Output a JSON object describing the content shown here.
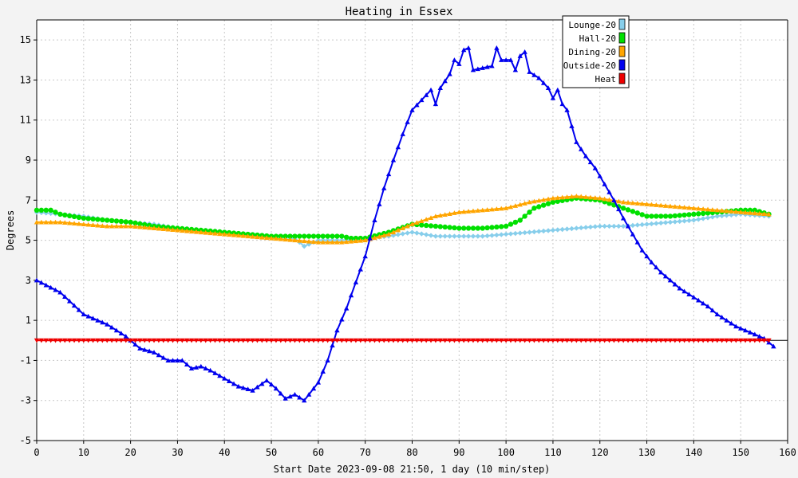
{
  "chart_data": {
    "type": "line",
    "title": "Heating in Essex",
    "xlabel": "Start Date 2023-09-08 21:50, 1 day (10 min/step)",
    "ylabel": "Degrees",
    "xlim": [
      0,
      160
    ],
    "ylim": [
      -5,
      16
    ],
    "x_ticks": [
      0,
      10,
      20,
      30,
      40,
      50,
      60,
      70,
      80,
      90,
      100,
      110,
      120,
      130,
      140,
      150,
      160
    ],
    "y_ticks": [
      -5,
      -3,
      -1,
      1,
      3,
      5,
      7,
      9,
      11,
      13,
      15
    ],
    "grid": true,
    "legend_position": "top-right",
    "series": [
      {
        "name": "Lounge-20",
        "color": "#87ceeb",
        "marker": "diamond",
        "points": [
          [
            0,
            6.4
          ],
          [
            5,
            6.3
          ],
          [
            10,
            6.2
          ],
          [
            15,
            6.0
          ],
          [
            20,
            5.9
          ],
          [
            25,
            5.8
          ],
          [
            30,
            5.6
          ],
          [
            35,
            5.5
          ],
          [
            40,
            5.4
          ],
          [
            45,
            5.3
          ],
          [
            50,
            5.2
          ],
          [
            55,
            5.1
          ],
          [
            57,
            4.7
          ],
          [
            60,
            5.0
          ],
          [
            65,
            5.0
          ],
          [
            70,
            5.1
          ],
          [
            75,
            5.2
          ],
          [
            80,
            5.4
          ],
          [
            85,
            5.2
          ],
          [
            90,
            5.2
          ],
          [
            95,
            5.2
          ],
          [
            100,
            5.3
          ],
          [
            105,
            5.4
          ],
          [
            110,
            5.5
          ],
          [
            115,
            5.6
          ],
          [
            120,
            5.7
          ],
          [
            125,
            5.7
          ],
          [
            130,
            5.8
          ],
          [
            135,
            5.9
          ],
          [
            140,
            6.0
          ],
          [
            145,
            6.2
          ],
          [
            150,
            6.3
          ],
          [
            156,
            6.2
          ]
        ]
      },
      {
        "name": "Hall-20",
        "color": "#00e000",
        "marker": "circle",
        "points": [
          [
            0,
            6.5
          ],
          [
            3,
            6.5
          ],
          [
            5,
            6.3
          ],
          [
            10,
            6.1
          ],
          [
            15,
            6.0
          ],
          [
            20,
            5.9
          ],
          [
            25,
            5.7
          ],
          [
            30,
            5.6
          ],
          [
            35,
            5.5
          ],
          [
            40,
            5.4
          ],
          [
            45,
            5.3
          ],
          [
            50,
            5.2
          ],
          [
            55,
            5.2
          ],
          [
            60,
            5.2
          ],
          [
            65,
            5.2
          ],
          [
            67,
            5.1
          ],
          [
            70,
            5.1
          ],
          [
            75,
            5.4
          ],
          [
            80,
            5.8
          ],
          [
            85,
            5.7
          ],
          [
            90,
            5.6
          ],
          [
            95,
            5.6
          ],
          [
            100,
            5.7
          ],
          [
            103,
            6.0
          ],
          [
            106,
            6.6
          ],
          [
            110,
            6.9
          ],
          [
            115,
            7.1
          ],
          [
            120,
            7.0
          ],
          [
            125,
            6.6
          ],
          [
            130,
            6.2
          ],
          [
            135,
            6.2
          ],
          [
            140,
            6.3
          ],
          [
            145,
            6.4
          ],
          [
            150,
            6.5
          ],
          [
            153,
            6.5
          ],
          [
            156,
            6.3
          ]
        ]
      },
      {
        "name": "Dining-20",
        "color": "#ffa500",
        "marker": "triangle",
        "points": [
          [
            0,
            5.9
          ],
          [
            5,
            5.9
          ],
          [
            10,
            5.8
          ],
          [
            15,
            5.7
          ],
          [
            20,
            5.7
          ],
          [
            25,
            5.6
          ],
          [
            30,
            5.5
          ],
          [
            35,
            5.4
          ],
          [
            40,
            5.3
          ],
          [
            45,
            5.2
          ],
          [
            50,
            5.1
          ],
          [
            55,
            5.0
          ],
          [
            60,
            4.9
          ],
          [
            65,
            4.9
          ],
          [
            70,
            5.0
          ],
          [
            75,
            5.3
          ],
          [
            80,
            5.8
          ],
          [
            85,
            6.2
          ],
          [
            90,
            6.4
          ],
          [
            95,
            6.5
          ],
          [
            100,
            6.6
          ],
          [
            105,
            6.9
          ],
          [
            110,
            7.1
          ],
          [
            115,
            7.2
          ],
          [
            120,
            7.1
          ],
          [
            125,
            6.9
          ],
          [
            130,
            6.8
          ],
          [
            135,
            6.7
          ],
          [
            140,
            6.6
          ],
          [
            145,
            6.5
          ],
          [
            150,
            6.4
          ],
          [
            156,
            6.3
          ]
        ]
      },
      {
        "name": "Outside-20",
        "color": "#0000ee",
        "marker": "triangle",
        "points": [
          [
            0,
            3.0
          ],
          [
            5,
            2.4
          ],
          [
            10,
            1.3
          ],
          [
            15,
            0.8
          ],
          [
            19,
            0.2
          ],
          [
            22,
            -0.4
          ],
          [
            25,
            -0.6
          ],
          [
            28,
            -1.0
          ],
          [
            31,
            -1.0
          ],
          [
            33,
            -1.4
          ],
          [
            35,
            -1.3
          ],
          [
            37,
            -1.5
          ],
          [
            40,
            -1.9
          ],
          [
            43,
            -2.3
          ],
          [
            46,
            -2.5
          ],
          [
            49,
            -2.0
          ],
          [
            51,
            -2.4
          ],
          [
            53,
            -2.9
          ],
          [
            55,
            -2.7
          ],
          [
            57,
            -3.0
          ],
          [
            60,
            -2.1
          ],
          [
            62,
            -1.0
          ],
          [
            64,
            0.5
          ],
          [
            66,
            1.6
          ],
          [
            68,
            2.9
          ],
          [
            70,
            4.2
          ],
          [
            72,
            6.0
          ],
          [
            74,
            7.6
          ],
          [
            76,
            9.0
          ],
          [
            78,
            10.3
          ],
          [
            80,
            11.5
          ],
          [
            82,
            12.0
          ],
          [
            84,
            12.5
          ],
          [
            85,
            11.8
          ],
          [
            86,
            12.6
          ],
          [
            88,
            13.3
          ],
          [
            89,
            14.0
          ],
          [
            90,
            13.8
          ],
          [
            91,
            14.5
          ],
          [
            92,
            14.6
          ],
          [
            93,
            13.5
          ],
          [
            95,
            13.6
          ],
          [
            97,
            13.7
          ],
          [
            98,
            14.6
          ],
          [
            99,
            14.0
          ],
          [
            101,
            14.0
          ],
          [
            102,
            13.5
          ],
          [
            103,
            14.2
          ],
          [
            104,
            14.4
          ],
          [
            105,
            13.4
          ],
          [
            107,
            13.1
          ],
          [
            109,
            12.6
          ],
          [
            110,
            12.1
          ],
          [
            111,
            12.5
          ],
          [
            112,
            11.8
          ],
          [
            113,
            11.5
          ],
          [
            115,
            9.9
          ],
          [
            117,
            9.2
          ],
          [
            119,
            8.6
          ],
          [
            121,
            7.8
          ],
          [
            123,
            7.0
          ],
          [
            125,
            6.1
          ],
          [
            127,
            5.3
          ],
          [
            129,
            4.5
          ],
          [
            131,
            3.9
          ],
          [
            133,
            3.4
          ],
          [
            135,
            3.0
          ],
          [
            137,
            2.6
          ],
          [
            139,
            2.3
          ],
          [
            141,
            2.0
          ],
          [
            143,
            1.7
          ],
          [
            145,
            1.3
          ],
          [
            147,
            1.0
          ],
          [
            149,
            0.7
          ],
          [
            151,
            0.5
          ],
          [
            153,
            0.3
          ],
          [
            155,
            0.1
          ],
          [
            157,
            -0.3
          ]
        ]
      },
      {
        "name": "Heat",
        "color": "#ee0000",
        "marker": "triangle-down",
        "points": [
          [
            0,
            0
          ],
          [
            156,
            0
          ]
        ]
      }
    ]
  }
}
